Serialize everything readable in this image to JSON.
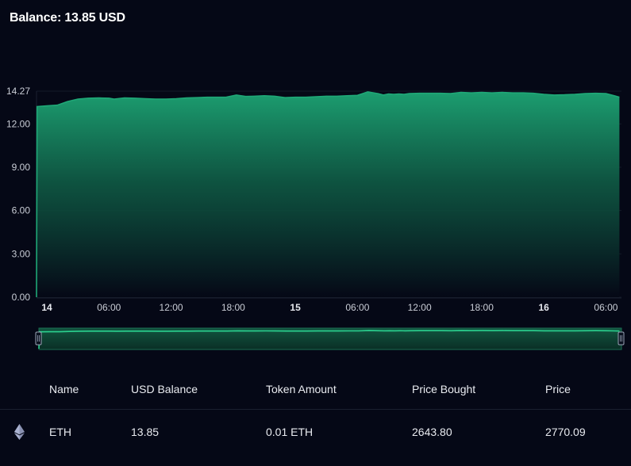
{
  "header": {
    "balance_label": "Balance:",
    "balance_value": "13.85 USD"
  },
  "chart_data": {
    "type": "area",
    "title": "",
    "xlabel": "",
    "ylabel": "",
    "ylim": [
      0,
      14.27
    ],
    "y_ticks": [
      "0.00",
      "3.00",
      "6.00",
      "9.00",
      "12.00",
      "14.27"
    ],
    "x_ticks": [
      {
        "label": "14",
        "major": true
      },
      {
        "label": "06:00",
        "major": false
      },
      {
        "label": "12:00",
        "major": false
      },
      {
        "label": "18:00",
        "major": false
      },
      {
        "label": "15",
        "major": true
      },
      {
        "label": "06:00",
        "major": false
      },
      {
        "label": "12:00",
        "major": false
      },
      {
        "label": "18:00",
        "major": false
      },
      {
        "label": "16",
        "major": true
      },
      {
        "label": "06:00",
        "major": false
      }
    ],
    "x_range_hours": [
      -1,
      55.5
    ],
    "series": [
      {
        "color": "#1fa877",
        "points": [
          [
            -1,
            0
          ],
          [
            -0.95,
            13.2
          ],
          [
            0,
            13.25
          ],
          [
            1,
            13.3
          ],
          [
            2,
            13.55
          ],
          [
            3,
            13.72
          ],
          [
            4,
            13.78
          ],
          [
            5,
            13.8
          ],
          [
            6,
            13.78
          ],
          [
            6.5,
            13.72
          ],
          [
            7.5,
            13.8
          ],
          [
            8.5,
            13.78
          ],
          [
            9.5,
            13.75
          ],
          [
            10.5,
            13.72
          ],
          [
            11.5,
            13.72
          ],
          [
            12.5,
            13.75
          ],
          [
            13.5,
            13.8
          ],
          [
            14.5,
            13.82
          ],
          [
            15.5,
            13.85
          ],
          [
            16.5,
            13.85
          ],
          [
            17.3,
            13.85
          ],
          [
            18.3,
            14.0
          ],
          [
            19.2,
            13.9
          ],
          [
            20,
            13.92
          ],
          [
            21,
            13.95
          ],
          [
            22,
            13.92
          ],
          [
            23,
            13.82
          ],
          [
            24,
            13.85
          ],
          [
            25,
            13.85
          ],
          [
            26,
            13.88
          ],
          [
            27,
            13.92
          ],
          [
            28,
            13.92
          ],
          [
            29,
            13.95
          ],
          [
            30,
            13.98
          ],
          [
            31,
            14.22
          ],
          [
            32,
            14.1
          ],
          [
            32.5,
            14.0
          ],
          [
            33,
            14.08
          ],
          [
            33.5,
            14.05
          ],
          [
            34,
            14.08
          ],
          [
            34.5,
            14.05
          ],
          [
            35,
            14.1
          ],
          [
            36,
            14.12
          ],
          [
            37,
            14.12
          ],
          [
            38,
            14.12
          ],
          [
            39,
            14.1
          ],
          [
            40,
            14.18
          ],
          [
            41,
            14.15
          ],
          [
            42,
            14.18
          ],
          [
            43,
            14.15
          ],
          [
            44,
            14.18
          ],
          [
            45,
            14.15
          ],
          [
            46,
            14.15
          ],
          [
            47,
            14.12
          ],
          [
            48,
            14.05
          ],
          [
            49,
            14.0
          ],
          [
            50,
            14.02
          ],
          [
            51,
            14.05
          ],
          [
            52,
            14.1
          ],
          [
            53,
            14.12
          ],
          [
            54,
            14.1
          ],
          [
            54.8,
            13.95
          ],
          [
            55.3,
            13.85
          ]
        ]
      }
    ],
    "navigator": {
      "show": true
    },
    "grid": true,
    "legend": "none"
  },
  "table": {
    "columns": [
      "Name",
      "USD Balance",
      "Token Amount",
      "Price Bought",
      "Price"
    ],
    "rows": [
      {
        "icon": "ethereum-icon",
        "name": "ETH",
        "usd_balance": "13.85",
        "token_amount": "0.01 ETH",
        "price_bought": "2643.80",
        "price": "2770.09"
      }
    ]
  },
  "colors": {
    "background": "#050816",
    "line": "#1fa877",
    "fill_top": "#1c9e70",
    "grid": "#141a28",
    "text": "#e9ebf0"
  }
}
